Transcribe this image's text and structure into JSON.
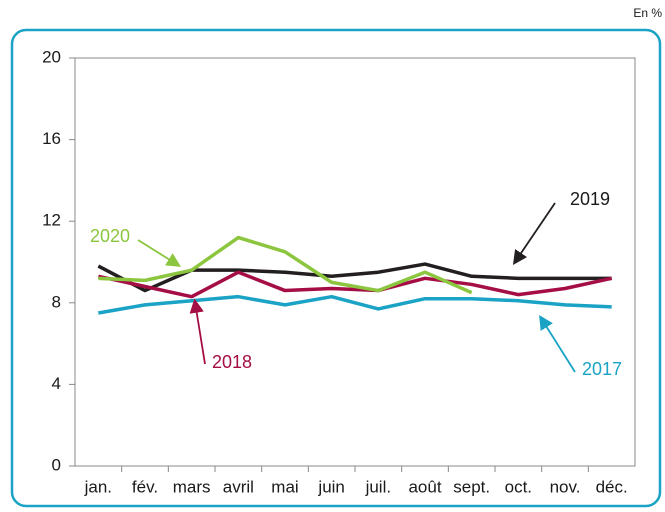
{
  "chart_data": {
    "type": "line",
    "unit_label": "En %",
    "categories": [
      "jan.",
      "fév.",
      "mars",
      "avril",
      "mai",
      "juin",
      "juil.",
      "août",
      "sept.",
      "oct.",
      "nov.",
      "déc."
    ],
    "series": [
      {
        "name": "2019",
        "color": "#231f20",
        "values": [
          9.8,
          8.6,
          9.6,
          9.6,
          9.5,
          9.3,
          9.5,
          9.9,
          9.3,
          9.2,
          9.2,
          9.2
        ]
      },
      {
        "name": "2018",
        "color": "#a50d45",
        "values": [
          9.3,
          8.8,
          8.3,
          9.5,
          8.6,
          8.7,
          8.6,
          9.2,
          8.9,
          8.4,
          8.7,
          9.2
        ]
      },
      {
        "name": "2020",
        "color": "#8cc63f",
        "values": [
          9.2,
          9.1,
          9.6,
          11.2,
          10.5,
          9.0,
          8.6,
          9.5,
          8.5,
          null,
          null,
          null
        ]
      },
      {
        "name": "2017",
        "color": "#1aa3c5",
        "values": [
          7.5,
          7.9,
          8.1,
          8.3,
          7.9,
          8.3,
          7.7,
          8.2,
          8.2,
          8.1,
          7.9,
          7.8
        ]
      }
    ],
    "ylim": [
      0,
      20
    ],
    "yticks": [
      0,
      4,
      8,
      12,
      16,
      20
    ],
    "grid": false
  }
}
